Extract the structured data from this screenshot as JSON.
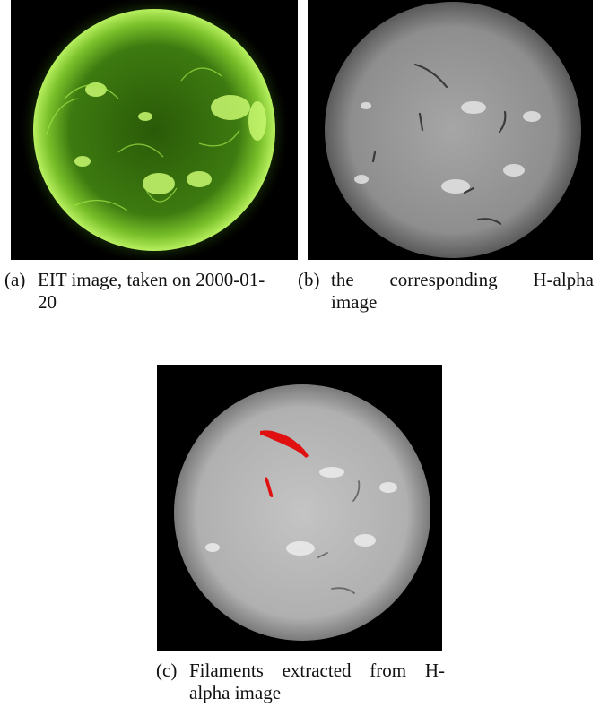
{
  "figures": {
    "a": {
      "label": "(a)",
      "caption_line1": "EIT image, taken on 2000-01-",
      "caption_line2": "20"
    },
    "b": {
      "label": "(b)",
      "caption_words": [
        "the",
        "corresponding",
        "H-alpha"
      ],
      "caption_line2": "image"
    },
    "c": {
      "label": "(c)",
      "caption_words": [
        "Filaments",
        "extracted",
        "from",
        "H-"
      ],
      "caption_line2": "alpha image"
    }
  },
  "colors": {
    "eit_green": "#8fd63a",
    "halpha_gray": "#9a9a9a",
    "filament_red": "#e01010",
    "background": "#000000"
  }
}
